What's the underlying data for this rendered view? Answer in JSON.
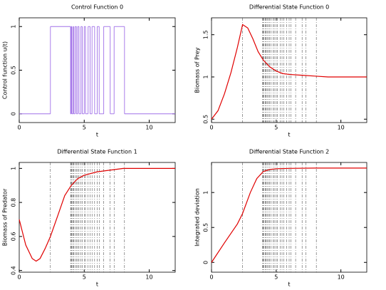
{
  "chart_data": [
    {
      "type": "step",
      "title": "Control Function 0",
      "xlabel": "t",
      "ylabel": "Control function u(t)",
      "xlim": [
        0,
        12
      ],
      "xticks": [
        0,
        5,
        10
      ],
      "ylim": [
        -0.1,
        1.1
      ],
      "yticks": [
        0,
        0.5,
        1
      ],
      "series": [
        {
          "color": "#a070e8",
          "x": [
            0,
            2.4,
            3.95,
            4.0,
            4.05,
            4.15,
            4.2,
            4.3,
            4.4,
            4.5,
            4.6,
            4.75,
            4.85,
            5.0,
            5.1,
            5.3,
            5.45,
            5.6,
            5.8,
            6.0,
            6.15,
            6.5,
            7.0,
            7.3,
            8.1
          ],
          "values": [
            0,
            1,
            0,
            1,
            0,
            1,
            0,
            1,
            0,
            1,
            0,
            1,
            0,
            1,
            0,
            1,
            0,
            1,
            0,
            1,
            0,
            1,
            0,
            1,
            0
          ]
        }
      ]
    },
    {
      "type": "line",
      "title": "Differential State Function 0",
      "xlabel": "t",
      "ylabel": "Biomass of Prey",
      "xlim": [
        0,
        12
      ],
      "xticks": [
        0,
        5,
        10
      ],
      "ylim": [
        0.46,
        1.7
      ],
      "yticks": [
        0.5,
        1,
        1.5
      ],
      "switch_times": [
        2.4,
        3.95,
        4.0,
        4.05,
        4.15,
        4.2,
        4.3,
        4.4,
        4.5,
        4.6,
        4.75,
        4.85,
        5.0,
        5.1,
        5.3,
        5.45,
        5.6,
        5.8,
        6.0,
        6.15,
        6.5,
        7.0,
        7.3,
        8.1
      ],
      "series": [
        {
          "color": "#e00000",
          "x": [
            0,
            0.5,
            1,
            1.5,
            2,
            2.4,
            2.8,
            3.2,
            3.6,
            4,
            4.5,
            5,
            5.5,
            6,
            7,
            8,
            9,
            10,
            12
          ],
          "values": [
            0.5,
            0.6,
            0.8,
            1.05,
            1.35,
            1.62,
            1.58,
            1.45,
            1.3,
            1.2,
            1.12,
            1.07,
            1.04,
            1.03,
            1.02,
            1.01,
            1.0,
            1.0,
            1.0
          ]
        }
      ]
    },
    {
      "type": "line",
      "title": "Differential State Function 1",
      "xlabel": "t",
      "ylabel": "Biomass of Predator",
      "xlim": [
        0,
        12
      ],
      "xticks": [
        0,
        5,
        10
      ],
      "ylim": [
        0.39,
        1.035
      ],
      "yticks": [
        0.4,
        0.6,
        0.8,
        1
      ],
      "switch_times": [
        2.4,
        3.95,
        4.0,
        4.05,
        4.15,
        4.2,
        4.3,
        4.4,
        4.5,
        4.6,
        4.75,
        4.85,
        5.0,
        5.1,
        5.3,
        5.45,
        5.6,
        5.8,
        6.0,
        6.15,
        6.5,
        7.0,
        7.3,
        8.1
      ],
      "series": [
        {
          "color": "#e00000",
          "x": [
            0,
            0.5,
            1,
            1.3,
            1.6,
            2,
            2.4,
            3,
            3.5,
            4,
            4.5,
            5,
            6,
            7,
            8,
            10,
            12
          ],
          "values": [
            0.7,
            0.55,
            0.47,
            0.455,
            0.47,
            0.53,
            0.6,
            0.73,
            0.84,
            0.9,
            0.94,
            0.96,
            0.98,
            0.99,
            1.0,
            1.0,
            1.0
          ]
        }
      ]
    },
    {
      "type": "line",
      "title": "Differential State Function 2",
      "xlabel": "t",
      "ylabel": "Integrated deviation",
      "xlim": [
        0,
        12
      ],
      "xticks": [
        0,
        5,
        10
      ],
      "ylim": [
        -0.14,
        1.43
      ],
      "yticks": [
        0,
        0.5,
        1
      ],
      "switch_times": [
        2.4,
        3.95,
        4.0,
        4.05,
        4.15,
        4.2,
        4.3,
        4.4,
        4.5,
        4.6,
        4.75,
        4.85,
        5.0,
        5.1,
        5.3,
        5.45,
        5.6,
        5.8,
        6.0,
        6.15,
        6.5,
        7.0,
        7.3,
        8.1
      ],
      "series": [
        {
          "color": "#e00000",
          "x": [
            0,
            1,
            2,
            2.4,
            3,
            3.5,
            4,
            4.5,
            5,
            6,
            8,
            12
          ],
          "values": [
            0,
            0.28,
            0.55,
            0.7,
            1.0,
            1.2,
            1.3,
            1.33,
            1.34,
            1.345,
            1.35,
            1.35
          ]
        }
      ]
    }
  ]
}
